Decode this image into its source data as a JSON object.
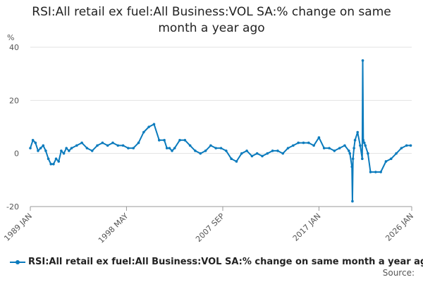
{
  "chart_data": {
    "type": "line",
    "title_line1": "RSI:All retail ex fuel:All Business:VOL SA:% change on same",
    "title_line2": "month a year ago",
    "ylabel": "%",
    "ylim": [
      -20,
      40
    ],
    "yticks": [
      "40",
      "20",
      "0",
      "-20"
    ],
    "xlim": [
      1989.0,
      2026.0
    ],
    "xticks": [
      {
        "label": "1989 JAN",
        "x": 1989.0
      },
      {
        "label": "1998 MAY",
        "x": 1998.33
      },
      {
        "label": "2007 SEP",
        "x": 2007.67
      },
      {
        "label": "2017 JAN",
        "x": 2017.0
      },
      {
        "label": "2026 JAN",
        "x": 2026.0
      }
    ],
    "grid": true,
    "legend": "bottom",
    "color": "#0b7bbd",
    "series": [
      {
        "name": "RSI:All retail ex fuel:All Business:VOL SA:% change on same month a year ago",
        "x": [
          1989.0,
          1989.25,
          1989.5,
          1989.75,
          1990.0,
          1990.25,
          1990.5,
          1990.75,
          1991.0,
          1991.25,
          1991.5,
          1991.75,
          1992.0,
          1992.25,
          1992.5,
          1992.75,
          1993.0,
          1993.5,
          1994.0,
          1994.5,
          1995.0,
          1995.5,
          1996.0,
          1996.5,
          1997.0,
          1997.5,
          1998.0,
          1998.5,
          1999.0,
          1999.5,
          2000.0,
          2000.5,
          2001.0,
          2001.5,
          2002.0,
          2002.25,
          2002.5,
          2002.75,
          2003.0,
          2003.5,
          2004.0,
          2004.5,
          2005.0,
          2005.5,
          2006.0,
          2006.5,
          2007.0,
          2007.5,
          2008.0,
          2008.5,
          2009.0,
          2009.5,
          2010.0,
          2010.5,
          2011.0,
          2011.5,
          2012.0,
          2012.5,
          2013.0,
          2013.5,
          2014.0,
          2014.5,
          2015.0,
          2015.5,
          2016.0,
          2016.5,
          2017.0,
          2017.5,
          2018.0,
          2018.5,
          2019.0,
          2019.5,
          2019.9,
          2020.0,
          2020.2,
          2020.25,
          2020.3,
          2020.4,
          2020.5,
          2020.75,
          2021.0,
          2021.2,
          2021.25,
          2021.3,
          2021.4,
          2021.5,
          2021.75,
          2022.0,
          2022.5,
          2023.0,
          2023.5,
          2024.0,
          2024.5,
          2025.0,
          2025.5,
          2025.9
        ],
        "values": [
          2,
          5,
          4,
          1,
          2,
          3,
          1,
          -2,
          -4,
          -4,
          -2,
          -3,
          1,
          0,
          2,
          1,
          2,
          3,
          4,
          2,
          1,
          3,
          4,
          3,
          4,
          3,
          3,
          2,
          2,
          4,
          8,
          10,
          11,
          5,
          5,
          2,
          2,
          1,
          2,
          5,
          5,
          3,
          1,
          0,
          1,
          3,
          2,
          2,
          1,
          -2,
          -3,
          0,
          1,
          -1,
          0,
          -1,
          0,
          1,
          1,
          0,
          2,
          3,
          4,
          4,
          4,
          3,
          6,
          2,
          2,
          1,
          2,
          3,
          1,
          0,
          -5,
          -18,
          -2,
          2,
          5,
          8,
          3,
          -2,
          35,
          5,
          4,
          3,
          0,
          -7,
          -7,
          -7,
          -3,
          -2,
          0,
          2,
          3,
          3
        ]
      }
    ]
  },
  "source_label": "Source:"
}
